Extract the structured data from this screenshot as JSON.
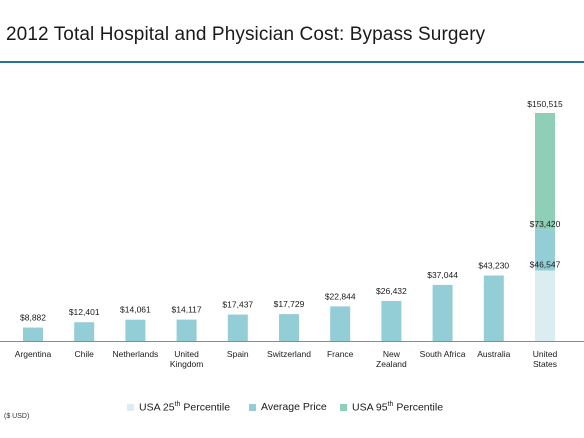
{
  "title": "2012 Total Hospital and Physician Cost: Bypass Surgery",
  "unit_note": "($ USD)",
  "colors": {
    "average": "#93cdd6",
    "p25": "#dcedf2",
    "p95": "#8fceb7",
    "title_rule": "#2b6f9b"
  },
  "legend": [
    {
      "key": "p25",
      "prefix": "USA 25",
      "sup": "th",
      "suffix": " Percentile"
    },
    {
      "key": "average",
      "prefix": "Average Price",
      "sup": "",
      "suffix": ""
    },
    {
      "key": "p95",
      "prefix": "USA  95",
      "sup": "th",
      "suffix": " Percentile"
    }
  ],
  "chart_data": {
    "type": "bar",
    "title": "2012 Total Hospital and Physician Cost: Bypass Surgery",
    "categories": [
      "Argentina",
      "Chile",
      "Netherlands",
      "United\nKingdom",
      "Spain",
      "Switzerland",
      "France",
      "New\nZealand",
      "South Africa",
      "Australia",
      "United\nStates"
    ],
    "values": [
      8882,
      12401,
      14061,
      14117,
      17437,
      17729,
      22844,
      26432,
      37044,
      43230,
      73420
    ],
    "value_labels": [
      "$8,882",
      "$12,401",
      "$14,061",
      "$14,117",
      "$17,437",
      "$17,729",
      "$22,844",
      "$26,432",
      "$37,044",
      "$43,230",
      "$73,420"
    ],
    "usa_range": {
      "category": "United\nStates",
      "p25": 46547,
      "p25_label": "$46,547",
      "average": 73420,
      "average_label": "$73,420",
      "p95": 150515,
      "p95_label": "$150,515"
    },
    "xlabel": "",
    "ylabel": "",
    "ylim": [
      0,
      150515
    ],
    "grid": false,
    "legend_position": "bottom"
  }
}
